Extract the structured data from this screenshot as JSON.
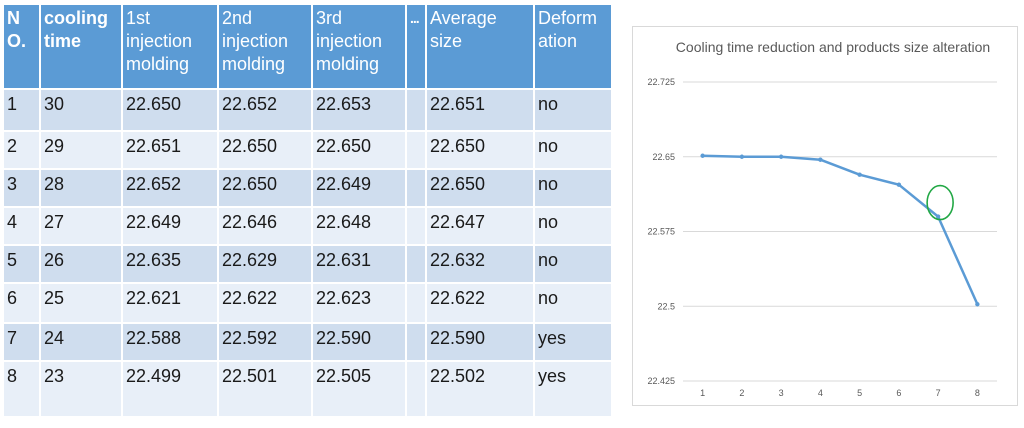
{
  "table": {
    "headers": [
      "N O.",
      "cooling time",
      "1st injection molding",
      "2nd injection molding",
      "3rd injection molding",
      "...",
      "Average size",
      "Deform ation"
    ],
    "rows": [
      [
        "1",
        "30",
        "22.650",
        "22.652",
        "22.653",
        "",
        "22.651",
        "no"
      ],
      [
        "2",
        "29",
        "22.651",
        "22.650",
        "22.650",
        "",
        "22.650",
        "no"
      ],
      [
        "3",
        "28",
        "22.652",
        "22.650",
        "22.649",
        "",
        "22.650",
        "no"
      ],
      [
        "4",
        "27",
        "22.649",
        "22.646",
        "22.648",
        "",
        "22.647",
        "no"
      ],
      [
        "5",
        "26",
        "22.635",
        "22.629",
        "22.631",
        "",
        "22.632",
        "no"
      ],
      [
        "6",
        "25",
        "22.621",
        "22.622",
        "22.623",
        "",
        "22.622",
        "no"
      ],
      [
        "7",
        "24",
        "22.588",
        "22.592",
        "22.590",
        "",
        "22.590",
        "yes"
      ],
      [
        "8",
        "23",
        "22.499",
        "22.501",
        "22.505",
        "",
        "22.502",
        "yes"
      ]
    ]
  },
  "chart_data": {
    "type": "line",
    "title": "Cooling time reduction and products size alteration",
    "x": [
      1,
      2,
      3,
      4,
      5,
      6,
      7,
      8
    ],
    "series": [
      {
        "values": [
          22.651,
          22.65,
          22.65,
          22.647,
          22.632,
          22.622,
          22.59,
          22.502
        ],
        "color": "#5b9bd5"
      }
    ],
    "ylim": [
      22.425,
      22.725
    ],
    "yticks": [
      "22.725",
      "22.65",
      "22.575",
      "22.5",
      "22.425"
    ],
    "ytick_values": [
      22.725,
      22.65,
      22.575,
      22.5,
      22.425
    ],
    "xticks": [
      "1",
      "2",
      "3",
      "4",
      "5",
      "6",
      "7",
      "8"
    ],
    "grid": true,
    "annotation": {
      "type": "circle",
      "x": 7,
      "y": 22.604,
      "color": "#22a845"
    }
  }
}
